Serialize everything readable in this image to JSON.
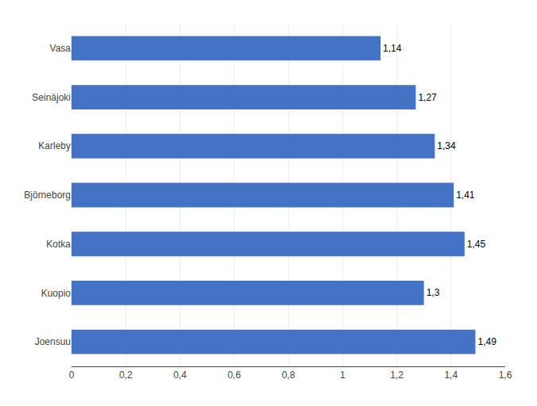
{
  "chart_data": {
    "type": "bar",
    "orientation": "horizontal",
    "categories": [
      "Joensuu",
      "Kuopio",
      "Kotka",
      "Björneborg",
      "Karleby",
      "Seinäjoki",
      "Vasa"
    ],
    "values": [
      1.49,
      1.3,
      1.45,
      1.41,
      1.34,
      1.27,
      1.14
    ],
    "value_labels": [
      "1,49",
      "1,3",
      "1,45",
      "1,41",
      "1,34",
      "1,27",
      "1,14"
    ],
    "data_labels": true,
    "color": "#4472C4",
    "xlim": [
      0,
      1.6
    ],
    "xticks": [
      0,
      {
        "value": 0.2,
        "label": "0,2"
      },
      {
        "value": 0.4,
        "label": "0,4"
      },
      {
        "value": 0.6,
        "label": "0,6"
      },
      {
        "value": 0.8,
        "label": "0,8"
      },
      1,
      {
        "value": 1.2,
        "label": "1,2"
      },
      {
        "value": 1.4,
        "label": "1,4"
      },
      {
        "value": 1.6,
        "label": "1,6"
      }
    ],
    "grid": true
  }
}
